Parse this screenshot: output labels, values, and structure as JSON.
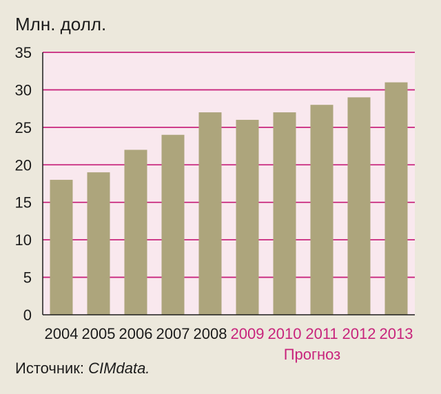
{
  "source": {
    "prefix": "Источник: ",
    "name": "CIMdata."
  },
  "colors": {
    "background": "#ece8dc",
    "plot_area": "#f9e8ee",
    "bars": "#ada57c",
    "gridlines": "#c8247c",
    "axis": "#1c1c1c",
    "text": "#1c1c1c",
    "forecast_text": "#c8247c"
  },
  "chart_data": {
    "type": "bar",
    "title": "",
    "ylabel": "Млн. долл.",
    "xlabel": "",
    "categories": [
      "2004",
      "2005",
      "2006",
      "2007",
      "2008",
      "2009",
      "2010",
      "2011",
      "2012",
      "2013"
    ],
    "values": [
      18,
      19,
      22,
      24,
      27,
      26,
      27,
      28,
      29,
      31
    ],
    "forecast_categories": [
      "2009",
      "2010",
      "2011",
      "2012",
      "2013"
    ],
    "forecast_label": "Прогноз",
    "ylim": [
      0,
      35
    ],
    "yticks": [
      0,
      5,
      10,
      15,
      20,
      25,
      30,
      35
    ],
    "grid": true,
    "legend": "none"
  }
}
